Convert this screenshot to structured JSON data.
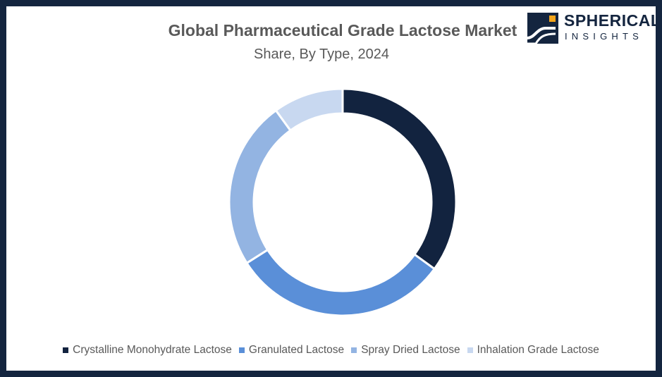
{
  "header": {
    "title": "Global Pharmaceutical Grade Lactose Market",
    "subtitle": "Share, By Type, 2024"
  },
  "logo": {
    "word1": "SPHERICAL",
    "word2": "INSIGHTS",
    "icon": "spherical-insights-logo-icon"
  },
  "colors": {
    "frame": "#14253f",
    "title_text": "#595959"
  },
  "chart_data": {
    "type": "pie",
    "variant": "donut",
    "title": "Global Pharmaceutical Grade Lactose Market",
    "subtitle": "Share, By Type, 2024",
    "legend_position": "bottom",
    "categories": [
      "Crystalline Monohydrate Lactose",
      "Granulated Lactose",
      "Spray Dried Lactose",
      "Inhalation Grade Lactose"
    ],
    "values": [
      35,
      31,
      24,
      10
    ],
    "colors": [
      "#12233f",
      "#5a8fd8",
      "#93b4e2",
      "#c8d8f0"
    ]
  }
}
